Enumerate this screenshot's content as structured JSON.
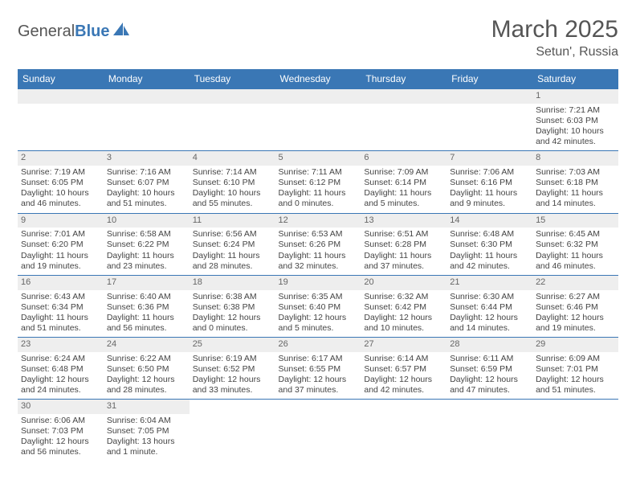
{
  "logo": {
    "text1": "General",
    "text2": "Blue"
  },
  "title": "March 2025",
  "location": "Setun', Russia",
  "colors": {
    "accent": "#3a77b5",
    "header_bg": "#eeeeee",
    "bg": "#ffffff"
  },
  "weekdays": [
    "Sunday",
    "Monday",
    "Tuesday",
    "Wednesday",
    "Thursday",
    "Friday",
    "Saturday"
  ],
  "weeks": [
    [
      null,
      null,
      null,
      null,
      null,
      null,
      {
        "d": "1",
        "sr": "Sunrise: 7:21 AM",
        "ss": "Sunset: 6:03 PM",
        "dl1": "Daylight: 10 hours",
        "dl2": "and 42 minutes."
      }
    ],
    [
      {
        "d": "2",
        "sr": "Sunrise: 7:19 AM",
        "ss": "Sunset: 6:05 PM",
        "dl1": "Daylight: 10 hours",
        "dl2": "and 46 minutes."
      },
      {
        "d": "3",
        "sr": "Sunrise: 7:16 AM",
        "ss": "Sunset: 6:07 PM",
        "dl1": "Daylight: 10 hours",
        "dl2": "and 51 minutes."
      },
      {
        "d": "4",
        "sr": "Sunrise: 7:14 AM",
        "ss": "Sunset: 6:10 PM",
        "dl1": "Daylight: 10 hours",
        "dl2": "and 55 minutes."
      },
      {
        "d": "5",
        "sr": "Sunrise: 7:11 AM",
        "ss": "Sunset: 6:12 PM",
        "dl1": "Daylight: 11 hours",
        "dl2": "and 0 minutes."
      },
      {
        "d": "6",
        "sr": "Sunrise: 7:09 AM",
        "ss": "Sunset: 6:14 PM",
        "dl1": "Daylight: 11 hours",
        "dl2": "and 5 minutes."
      },
      {
        "d": "7",
        "sr": "Sunrise: 7:06 AM",
        "ss": "Sunset: 6:16 PM",
        "dl1": "Daylight: 11 hours",
        "dl2": "and 9 minutes."
      },
      {
        "d": "8",
        "sr": "Sunrise: 7:03 AM",
        "ss": "Sunset: 6:18 PM",
        "dl1": "Daylight: 11 hours",
        "dl2": "and 14 minutes."
      }
    ],
    [
      {
        "d": "9",
        "sr": "Sunrise: 7:01 AM",
        "ss": "Sunset: 6:20 PM",
        "dl1": "Daylight: 11 hours",
        "dl2": "and 19 minutes."
      },
      {
        "d": "10",
        "sr": "Sunrise: 6:58 AM",
        "ss": "Sunset: 6:22 PM",
        "dl1": "Daylight: 11 hours",
        "dl2": "and 23 minutes."
      },
      {
        "d": "11",
        "sr": "Sunrise: 6:56 AM",
        "ss": "Sunset: 6:24 PM",
        "dl1": "Daylight: 11 hours",
        "dl2": "and 28 minutes."
      },
      {
        "d": "12",
        "sr": "Sunrise: 6:53 AM",
        "ss": "Sunset: 6:26 PM",
        "dl1": "Daylight: 11 hours",
        "dl2": "and 32 minutes."
      },
      {
        "d": "13",
        "sr": "Sunrise: 6:51 AM",
        "ss": "Sunset: 6:28 PM",
        "dl1": "Daylight: 11 hours",
        "dl2": "and 37 minutes."
      },
      {
        "d": "14",
        "sr": "Sunrise: 6:48 AM",
        "ss": "Sunset: 6:30 PM",
        "dl1": "Daylight: 11 hours",
        "dl2": "and 42 minutes."
      },
      {
        "d": "15",
        "sr": "Sunrise: 6:45 AM",
        "ss": "Sunset: 6:32 PM",
        "dl1": "Daylight: 11 hours",
        "dl2": "and 46 minutes."
      }
    ],
    [
      {
        "d": "16",
        "sr": "Sunrise: 6:43 AM",
        "ss": "Sunset: 6:34 PM",
        "dl1": "Daylight: 11 hours",
        "dl2": "and 51 minutes."
      },
      {
        "d": "17",
        "sr": "Sunrise: 6:40 AM",
        "ss": "Sunset: 6:36 PM",
        "dl1": "Daylight: 11 hours",
        "dl2": "and 56 minutes."
      },
      {
        "d": "18",
        "sr": "Sunrise: 6:38 AM",
        "ss": "Sunset: 6:38 PM",
        "dl1": "Daylight: 12 hours",
        "dl2": "and 0 minutes."
      },
      {
        "d": "19",
        "sr": "Sunrise: 6:35 AM",
        "ss": "Sunset: 6:40 PM",
        "dl1": "Daylight: 12 hours",
        "dl2": "and 5 minutes."
      },
      {
        "d": "20",
        "sr": "Sunrise: 6:32 AM",
        "ss": "Sunset: 6:42 PM",
        "dl1": "Daylight: 12 hours",
        "dl2": "and 10 minutes."
      },
      {
        "d": "21",
        "sr": "Sunrise: 6:30 AM",
        "ss": "Sunset: 6:44 PM",
        "dl1": "Daylight: 12 hours",
        "dl2": "and 14 minutes."
      },
      {
        "d": "22",
        "sr": "Sunrise: 6:27 AM",
        "ss": "Sunset: 6:46 PM",
        "dl1": "Daylight: 12 hours",
        "dl2": "and 19 minutes."
      }
    ],
    [
      {
        "d": "23",
        "sr": "Sunrise: 6:24 AM",
        "ss": "Sunset: 6:48 PM",
        "dl1": "Daylight: 12 hours",
        "dl2": "and 24 minutes."
      },
      {
        "d": "24",
        "sr": "Sunrise: 6:22 AM",
        "ss": "Sunset: 6:50 PM",
        "dl1": "Daylight: 12 hours",
        "dl2": "and 28 minutes."
      },
      {
        "d": "25",
        "sr": "Sunrise: 6:19 AM",
        "ss": "Sunset: 6:52 PM",
        "dl1": "Daylight: 12 hours",
        "dl2": "and 33 minutes."
      },
      {
        "d": "26",
        "sr": "Sunrise: 6:17 AM",
        "ss": "Sunset: 6:55 PM",
        "dl1": "Daylight: 12 hours",
        "dl2": "and 37 minutes."
      },
      {
        "d": "27",
        "sr": "Sunrise: 6:14 AM",
        "ss": "Sunset: 6:57 PM",
        "dl1": "Daylight: 12 hours",
        "dl2": "and 42 minutes."
      },
      {
        "d": "28",
        "sr": "Sunrise: 6:11 AM",
        "ss": "Sunset: 6:59 PM",
        "dl1": "Daylight: 12 hours",
        "dl2": "and 47 minutes."
      },
      {
        "d": "29",
        "sr": "Sunrise: 6:09 AM",
        "ss": "Sunset: 7:01 PM",
        "dl1": "Daylight: 12 hours",
        "dl2": "and 51 minutes."
      }
    ],
    [
      {
        "d": "30",
        "sr": "Sunrise: 6:06 AM",
        "ss": "Sunset: 7:03 PM",
        "dl1": "Daylight: 12 hours",
        "dl2": "and 56 minutes."
      },
      {
        "d": "31",
        "sr": "Sunrise: 6:04 AM",
        "ss": "Sunset: 7:05 PM",
        "dl1": "Daylight: 13 hours",
        "dl2": "and 1 minute."
      },
      null,
      null,
      null,
      null,
      null
    ]
  ]
}
